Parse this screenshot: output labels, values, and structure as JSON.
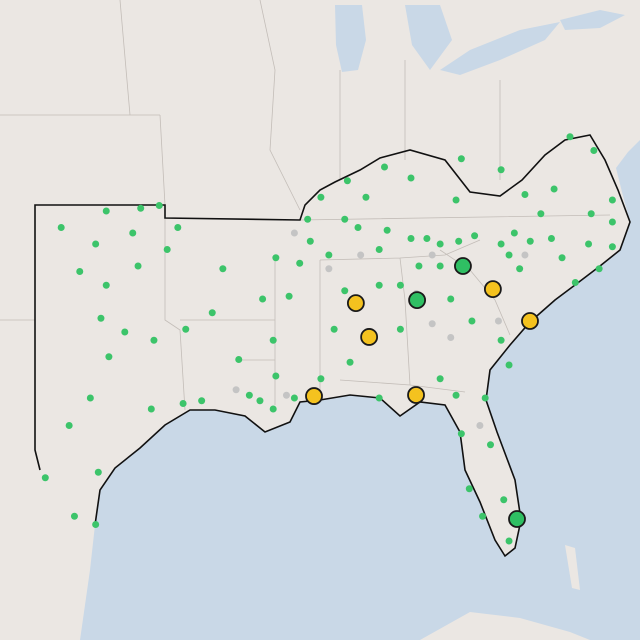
{
  "map": {
    "markers": [
      {
        "color": "#c4c4c4",
        "points": [
          [
            -88.6,
            36.2
          ],
          [
            -87.3,
            34.9
          ],
          [
            -83.4,
            35.4
          ],
          [
            -83.4,
            32.9
          ],
          [
            -82.7,
            32.4
          ],
          [
            -80.9,
            33.0
          ],
          [
            -86.1,
            35.4
          ],
          [
            -79.9,
            35.4
          ],
          [
            -90.8,
            30.5
          ],
          [
            -88.9,
            30.3
          ],
          [
            -81.6,
            29.2
          ],
          [
            -84.0,
            34.0
          ]
        ]
      },
      {
        "color": "#3cc46a",
        "points": [
          [
            -97.4,
            36.4
          ],
          [
            -95.7,
            37.0
          ],
          [
            -94.4,
            37.1
          ],
          [
            -93.7,
            37.2
          ],
          [
            -96.1,
            35.8
          ],
          [
            -94.7,
            36.2
          ],
          [
            -96.7,
            34.8
          ],
          [
            -95.7,
            34.3
          ],
          [
            -94.5,
            35.0
          ],
          [
            -93.4,
            35.6
          ],
          [
            -93.0,
            36.4
          ],
          [
            -91.3,
            34.9
          ],
          [
            -91.7,
            33.3
          ],
          [
            -95.9,
            33.1
          ],
          [
            -95.0,
            32.6
          ],
          [
            -95.6,
            31.7
          ],
          [
            -93.9,
            32.3
          ],
          [
            -92.7,
            32.7
          ],
          [
            -96.3,
            30.2
          ],
          [
            -94.0,
            29.8
          ],
          [
            -97.1,
            29.2
          ],
          [
            -98.0,
            27.3
          ],
          [
            -96.9,
            25.9
          ],
          [
            -96.1,
            25.6
          ],
          [
            -96.0,
            27.5
          ],
          [
            -92.8,
            30.0
          ],
          [
            -92.1,
            30.1
          ],
          [
            -90.3,
            30.3
          ],
          [
            -89.9,
            30.1
          ],
          [
            -89.4,
            29.8
          ],
          [
            -88.6,
            30.2
          ],
          [
            -90.7,
            31.6
          ],
          [
            -89.4,
            32.3
          ],
          [
            -89.8,
            33.8
          ],
          [
            -89.3,
            35.3
          ],
          [
            -88.4,
            35.1
          ],
          [
            -88.0,
            35.9
          ],
          [
            -87.3,
            35.4
          ],
          [
            -86.7,
            36.7
          ],
          [
            -86.2,
            36.4
          ],
          [
            -85.4,
            35.6
          ],
          [
            -85.1,
            36.3
          ],
          [
            -84.2,
            36.0
          ],
          [
            -83.6,
            36.0
          ],
          [
            -83.1,
            35.8
          ],
          [
            -82.4,
            35.9
          ],
          [
            -81.8,
            36.1
          ],
          [
            -80.8,
            35.8
          ],
          [
            -80.3,
            36.2
          ],
          [
            -79.7,
            35.9
          ],
          [
            -78.9,
            36.0
          ],
          [
            -78.5,
            35.3
          ],
          [
            -77.5,
            35.8
          ],
          [
            -76.6,
            35.7
          ],
          [
            -77.1,
            34.9
          ],
          [
            -78.0,
            34.4
          ],
          [
            -80.1,
            34.9
          ],
          [
            -80.5,
            35.4
          ],
          [
            -82.5,
            37.4
          ],
          [
            -82.3,
            38.9
          ],
          [
            -84.2,
            38.2
          ],
          [
            -85.2,
            38.6
          ],
          [
            -86.6,
            38.1
          ],
          [
            -85.9,
            37.5
          ],
          [
            -87.6,
            37.5
          ],
          [
            -88.1,
            36.7
          ],
          [
            -80.8,
            38.5
          ],
          [
            -79.9,
            37.6
          ],
          [
            -78.8,
            37.8
          ],
          [
            -78.2,
            39.7
          ],
          [
            -77.3,
            39.2
          ],
          [
            -76.6,
            37.4
          ],
          [
            -76.6,
            36.6
          ],
          [
            -79.3,
            36.9
          ],
          [
            -77.4,
            36.9
          ],
          [
            -86.7,
            34.1
          ],
          [
            -85.4,
            34.3
          ],
          [
            -87.1,
            32.7
          ],
          [
            -87.6,
            30.9
          ],
          [
            -85.4,
            30.2
          ],
          [
            -83.1,
            30.9
          ],
          [
            -82.5,
            30.3
          ],
          [
            -81.4,
            30.2
          ],
          [
            -82.3,
            28.9
          ],
          [
            -81.2,
            28.5
          ],
          [
            -82.0,
            26.9
          ],
          [
            -81.5,
            25.9
          ],
          [
            -80.5,
            25.0
          ],
          [
            -80.7,
            26.5
          ],
          [
            -82.7,
            33.8
          ],
          [
            -81.9,
            33.0
          ],
          [
            -80.8,
            32.3
          ],
          [
            -80.5,
            31.4
          ],
          [
            -83.1,
            35.0
          ],
          [
            -83.9,
            35.0
          ],
          [
            -84.6,
            34.3
          ],
          [
            -84.6,
            32.7
          ],
          [
            -88.8,
            33.9
          ],
          [
            -86.5,
            31.5
          ],
          [
            -89.3,
            31.0
          ]
        ]
      },
      {
        "color": "#f4c21f",
        "outline": "#1a1a1a",
        "points": [
          [
            -86.28,
            33.65
          ],
          [
            -85.78,
            32.42
          ],
          [
            -87.86,
            30.27
          ],
          [
            -84.01,
            30.31
          ],
          [
            -81.11,
            34.16
          ],
          [
            -79.71,
            33.0
          ]
        ]
      },
      {
        "color": "#2fbf63",
        "outline": "#1a1a1a",
        "points": [
          [
            -82.24,
            35.0
          ],
          [
            -83.97,
            33.76
          ],
          [
            -80.2,
            25.8
          ]
        ]
      }
    ]
  }
}
